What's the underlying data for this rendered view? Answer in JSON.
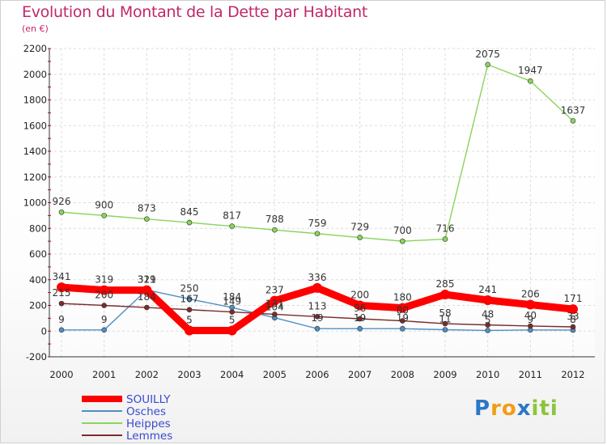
{
  "chart_data": {
    "type": "line",
    "title": "Evolution du Montant de la Dette par Habitant",
    "subtitle": "(en €)",
    "ylim": [
      -200,
      2200
    ],
    "yticks": [
      -200,
      0,
      200,
      400,
      600,
      800,
      1000,
      1200,
      1400,
      1600,
      1800,
      2000,
      2200
    ],
    "x": [
      "2000",
      "2001",
      "2002",
      "2003",
      "2004",
      "2005",
      "2006",
      "2007",
      "2008",
      "2009",
      "2010",
      "2011",
      "2012"
    ],
    "grid": true,
    "legend_position": "bottom-left",
    "series": [
      {
        "name": "SOUILLY",
        "color": "#ff0000",
        "values": [
          341,
          319,
          319,
          5,
          5,
          237,
          336,
          200,
          180,
          285,
          241,
          206,
          171
        ]
      },
      {
        "name": "Osches",
        "color": "#4f8fc4",
        "values": [
          9,
          9,
          321,
          250,
          184,
          104,
          19,
          19,
          19,
          11,
          5,
          9,
          8
        ]
      },
      {
        "name": "Heippes",
        "color": "#8ad45c",
        "values": [
          926,
          900,
          873,
          845,
          817,
          788,
          759,
          729,
          700,
          716,
          2075,
          1947,
          1637
        ]
      },
      {
        "name": "Lemmes",
        "color": "#7b2b2b",
        "values": [
          215,
          200,
          184,
          167,
          149,
          131,
          113,
          96,
          80,
          58,
          48,
          40,
          33
        ]
      }
    ]
  },
  "branding": {
    "letters": [
      "P",
      "r",
      "o",
      "x",
      "i",
      "t",
      "i"
    ],
    "colors": [
      "#2c77c7",
      "#f29c16",
      "#f29c16",
      "#2c77c7",
      "#8cc43c",
      "#8cc43c",
      "#8cc43c"
    ]
  }
}
